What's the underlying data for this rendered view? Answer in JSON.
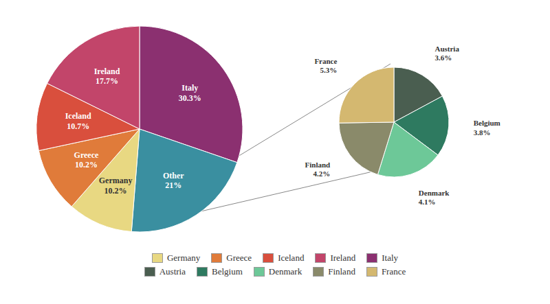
{
  "chart_data": [
    {
      "type": "pie",
      "categories": [
        "Italy",
        "Other",
        "Germany",
        "Greece",
        "Iceland",
        "Ireland"
      ],
      "values": [
        30.3,
        21.0,
        10.2,
        10.2,
        10.7,
        17.7
      ],
      "value_labels": [
        "30.3%",
        "21%",
        "10.2%",
        "10.2%",
        "10.7%",
        "17.7%"
      ],
      "colors": [
        "#8B3070",
        "#3A8FA0",
        "#E8D882",
        "#E07B3A",
        "#D94F3D",
        "#C2456A"
      ],
      "data_labels": true,
      "legend": "bottom",
      "legend_entries": [
        {
          "name": "Germany",
          "color": "#E8D882"
        },
        {
          "name": "Greece",
          "color": "#E07B3A"
        },
        {
          "name": "Iceland",
          "color": "#D94F3D"
        },
        {
          "name": "Ireland",
          "color": "#C2456A"
        },
        {
          "name": "Italy",
          "color": "#8B3070"
        },
        {
          "name": "Austria",
          "color": "#4A5E50"
        },
        {
          "name": "Belgium",
          "color": "#2E7A60"
        },
        {
          "name": "Denmark",
          "color": "#6DC898"
        },
        {
          "name": "Finland",
          "color": "#8A8A6A"
        },
        {
          "name": "France",
          "color": "#D4B870"
        }
      ]
    },
    {
      "type": "pie",
      "categories": [
        "Austria",
        "Belgium",
        "Denmark",
        "Finland",
        "France"
      ],
      "values": [
        3.6,
        3.8,
        4.1,
        4.2,
        5.3
      ],
      "value_labels": [
        "3.6%",
        "3.8%",
        "4.1%",
        "4.2%",
        "5.3%"
      ],
      "colors": [
        "#4A5E50",
        "#2E7A60",
        "#6DC898",
        "#8A8A6A",
        "#D4B870"
      ],
      "data_labels": true
    }
  ]
}
